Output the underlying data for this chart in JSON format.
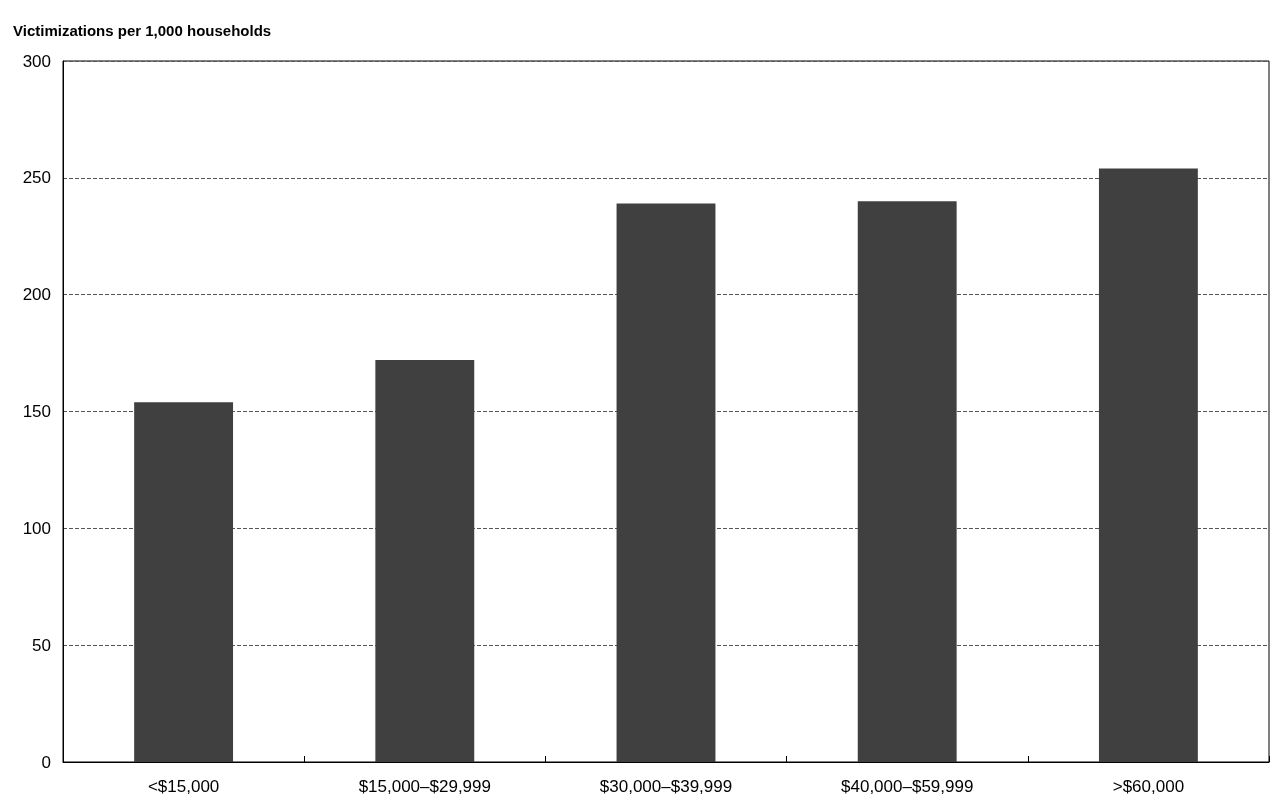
{
  "chart_data": {
    "type": "bar",
    "ylabel": "Victimizations per 1,000 households",
    "categories": [
      "<$15,000",
      "$15,000–$29,999",
      "$30,000–$39,999",
      "$40,000–$59,999",
      ">$60,000"
    ],
    "values": [
      154,
      172,
      239,
      240,
      254
    ],
    "color": "#404040",
    "ylim": [
      0,
      300
    ],
    "yticks": [
      0,
      50,
      100,
      150,
      200,
      250,
      300
    ],
    "grid": "y",
    "line_style": "dashed"
  }
}
